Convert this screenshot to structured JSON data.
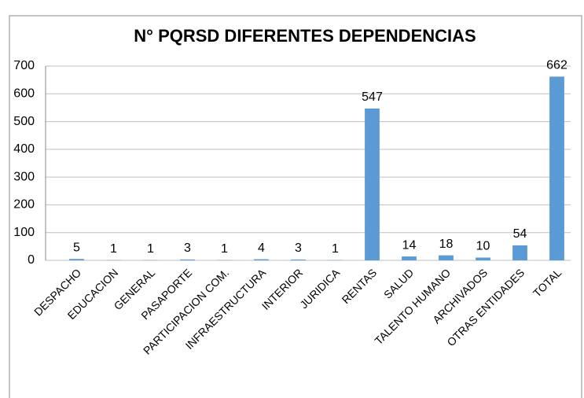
{
  "chart_data": {
    "type": "bar",
    "title": "N° PQRSD DIFERENTES DEPENDENCIAS",
    "categories": [
      "DESPACHO",
      "EDUCACION",
      "GENERAL",
      "PASAPORTE",
      "PARTICIPACION COM.",
      "INFRAESTRUCTURA",
      "INTERIOR",
      "JURIDICA",
      "RENTAS",
      "SALUD",
      "TALENTO HUMANO",
      "ARCHIVADOS",
      "OTRAS ENTIDADES",
      "TOTAL"
    ],
    "values": [
      5,
      1,
      1,
      3,
      1,
      4,
      3,
      1,
      547,
      14,
      18,
      10,
      54,
      662
    ],
    "color": "#5b9bd5",
    "ylim": [
      0,
      700
    ],
    "yticks": [
      0,
      100,
      200,
      300,
      400,
      500,
      600,
      700
    ],
    "grid": true
  }
}
